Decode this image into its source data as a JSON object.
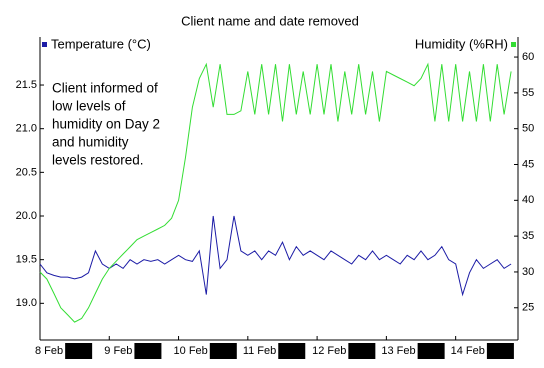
{
  "chart_data": {
    "type": "line",
    "title": "Client name and date removed",
    "annotation": [
      "Client informed of",
      "low levels of",
      "humidity on Day 2",
      "and humidity",
      "levels restored."
    ],
    "x": [
      0,
      0.1,
      0.2,
      0.3,
      0.4,
      0.5,
      0.6,
      0.7,
      0.8,
      0.9,
      1,
      1.1,
      1.2,
      1.3,
      1.4,
      1.5,
      1.6,
      1.7,
      1.8,
      1.9,
      2,
      2.1,
      2.2,
      2.3,
      2.4,
      2.5,
      2.6,
      2.7,
      2.8,
      2.9,
      3,
      3.1,
      3.2,
      3.3,
      3.4,
      3.5,
      3.6,
      3.7,
      3.8,
      3.9,
      4,
      4.1,
      4.2,
      4.3,
      4.4,
      4.5,
      4.6,
      4.7,
      4.8,
      4.9,
      5,
      5.1,
      5.2,
      5.3,
      5.4,
      5.5,
      5.6,
      5.7,
      5.8,
      5.9,
      6,
      6.1,
      6.2,
      6.3,
      6.4,
      6.5,
      6.6,
      6.7,
      6.8
    ],
    "xlim": [
      0,
      6.9
    ],
    "xticks": [
      {
        "value": 0,
        "label": "8 Feb"
      },
      {
        "value": 1,
        "label": "9 Feb"
      },
      {
        "value": 2,
        "label": "10 Feb"
      },
      {
        "value": 3,
        "label": "11 Feb"
      },
      {
        "value": 4,
        "label": "12 Feb"
      },
      {
        "value": 5,
        "label": "13 Feb"
      },
      {
        "value": 6,
        "label": "14 Feb"
      }
    ],
    "ylim": [
      18.58,
      22.05
    ],
    "yticks": [
      {
        "value": 19,
        "label": "19.0"
      },
      19.5,
      {
        "value": 20,
        "label": "20.0"
      },
      20.5,
      {
        "value": 21,
        "label": "21.0"
      },
      21.5
    ],
    "y2lim": [
      20.5,
      62.8
    ],
    "y2ticks": [
      25,
      30,
      35,
      40,
      45,
      50,
      55,
      60
    ],
    "series": [
      {
        "name": "Temperature (°C)",
        "color": "#1c1ca6",
        "values": [
          19.45,
          19.35,
          19.32,
          19.3,
          19.3,
          19.28,
          19.3,
          19.35,
          19.6,
          19.45,
          19.4,
          19.45,
          19.4,
          19.5,
          19.45,
          19.5,
          19.48,
          19.5,
          19.45,
          19.5,
          19.55,
          19.5,
          19.48,
          19.6,
          19.1,
          20.0,
          19.4,
          19.5,
          20.0,
          19.6,
          19.55,
          19.6,
          19.5,
          19.6,
          19.55,
          19.7,
          19.5,
          19.65,
          19.55,
          19.6,
          19.55,
          19.5,
          19.6,
          19.55,
          19.5,
          19.45,
          19.55,
          19.5,
          19.6,
          19.5,
          19.55,
          19.5,
          19.45,
          19.55,
          19.5,
          19.6,
          19.5,
          19.55,
          19.65,
          19.5,
          19.45,
          19.1,
          19.35,
          19.5,
          19.4,
          19.45,
          19.5,
          19.4,
          19.45
        ]
      },
      {
        "name": "Humidity (%RH)",
        "color": "#33dd33",
        "axis": "y2",
        "values": [
          30,
          29,
          27,
          25,
          24,
          23,
          23.5,
          25,
          27,
          29,
          30.5,
          31.5,
          32.5,
          33.5,
          34.5,
          35,
          35.5,
          36,
          36.5,
          37.5,
          40,
          46,
          53,
          57,
          59,
          53,
          59,
          52,
          52,
          52.5,
          58,
          52,
          59,
          52,
          59,
          51,
          59,
          52,
          58,
          52,
          59,
          52,
          59,
          51,
          58,
          52,
          59,
          52,
          58,
          51,
          58,
          57.5,
          57,
          56.5,
          56,
          57,
          59,
          51,
          59,
          51,
          59,
          51,
          58,
          51,
          59,
          51,
          59,
          52,
          58
        ]
      }
    ]
  }
}
